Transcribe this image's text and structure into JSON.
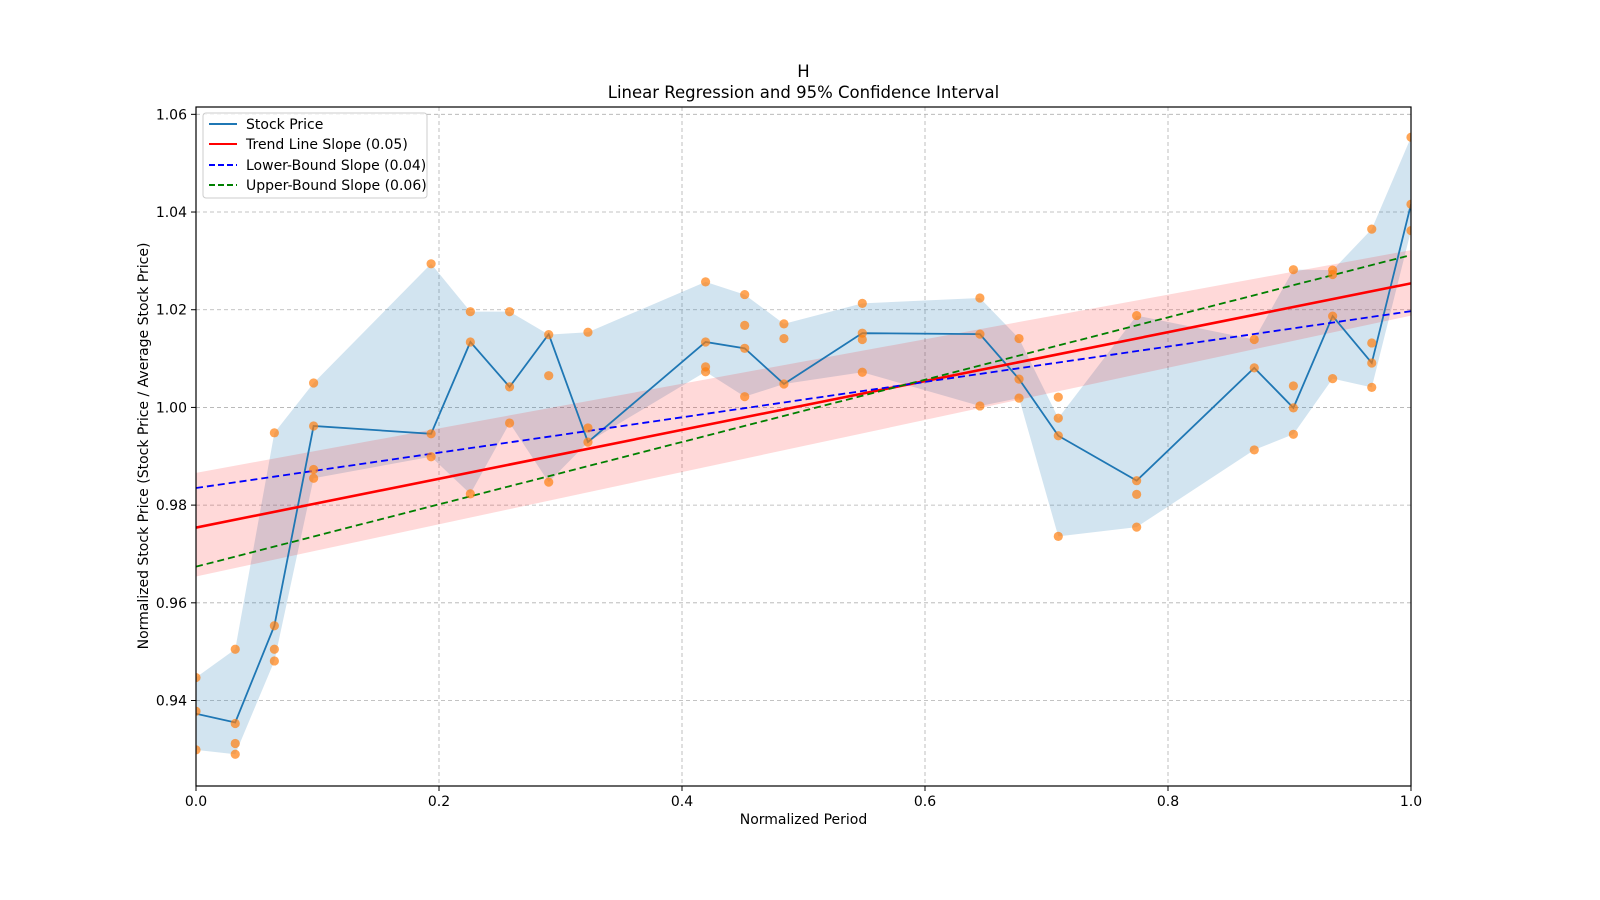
{
  "chart_data": {
    "type": "line",
    "title": "H",
    "subtitle": "Linear Regression and 95% Confidence Interval",
    "xlabel": "Normalized Period",
    "ylabel": "Normalized Stock Price (Stock Price / Average Stock Price)",
    "xlim": [
      0.0,
      1.0
    ],
    "ylim": [
      0.9225,
      1.0615
    ],
    "xticks": [
      "0.0",
      "0.2",
      "0.4",
      "0.6",
      "0.8",
      "1.0"
    ],
    "xtick_values": [
      0.0,
      0.2,
      0.4,
      0.6,
      0.8,
      1.0
    ],
    "yticks": [
      "0.94",
      "0.96",
      "0.98",
      "1.00",
      "1.02",
      "1.04",
      "1.06"
    ],
    "ytick_values": [
      0.94,
      0.96,
      0.98,
      1.0,
      1.02,
      1.04,
      1.06
    ],
    "grid": true,
    "legend_position": "top-left",
    "legend": [
      {
        "label": "Stock Price",
        "color": "#1f77b4",
        "style": "solid"
      },
      {
        "label": "Trend Line Slope (0.05)",
        "color": "#ff0000",
        "style": "solid"
      },
      {
        "label": "Lower-Bound Slope (0.04)",
        "color": "#0000ff",
        "style": "dashed"
      },
      {
        "label": "Upper-Bound Slope (0.06)",
        "color": "#008000",
        "style": "dashed"
      }
    ],
    "colors": {
      "price_line": "#1f77b4",
      "price_band": "#1f77b4",
      "scatter": "#ff7f0e",
      "trend": "#ff0000",
      "trend_band": "#ff9da6",
      "lower": "#0000ff",
      "upper": "#008000"
    },
    "x": [
      0.0,
      0.0323,
      0.0645,
      0.0968,
      0.1935,
      0.2258,
      0.2581,
      0.2903,
      0.3226,
      0.4194,
      0.4516,
      0.4839,
      0.5484,
      0.6452,
      0.6774,
      0.7097,
      0.7742,
      0.871,
      0.9032,
      0.9355,
      0.9677,
      1.0
    ],
    "series": [
      {
        "name": "Stock Price",
        "values": [
          0.9373,
          0.9355,
          0.9553,
          0.9962,
          0.9946,
          1.0134,
          1.0042,
          1.015,
          0.9929,
          1.0134,
          1.0121,
          1.0048,
          1.0152,
          1.015,
          1.0058,
          0.9942,
          0.985,
          1.0081,
          0.9999,
          1.0187,
          1.0091,
          1.0416
        ]
      }
    ],
    "band_upper": [
      0.9447,
      0.9505,
      0.9948,
      1.005,
      1.0294,
      1.0196,
      1.0196,
      1.0149,
      1.0154,
      1.0257,
      1.0231,
      1.0171,
      1.0213,
      1.0224,
      1.0141,
      0.9978,
      1.0188,
      1.0139,
      1.0282,
      1.0281,
      1.0365,
      1.0553
    ],
    "band_lower": [
      0.9299,
      0.929,
      0.9481,
      0.9855,
      0.9899,
      0.9823,
      0.9968,
      0.9847,
      0.9929,
      1.0073,
      1.0022,
      1.0048,
      1.0072,
      1.0003,
      1.0019,
      0.9736,
      0.9755,
      0.9913,
      0.9945,
      1.0059,
      1.0041,
      1.0362
    ],
    "scatter_points": [
      [
        0.0,
        0.9447
      ],
      [
        0.0,
        0.9378
      ],
      [
        0.0,
        0.9299
      ],
      [
        0.0323,
        0.9505
      ],
      [
        0.0323,
        0.9353
      ],
      [
        0.0323,
        0.9312
      ],
      [
        0.0323,
        0.929
      ],
      [
        0.0645,
        0.9948
      ],
      [
        0.0645,
        0.9553
      ],
      [
        0.0645,
        0.9505
      ],
      [
        0.0645,
        0.9481
      ],
      [
        0.0968,
        1.005
      ],
      [
        0.0968,
        0.9962
      ],
      [
        0.0968,
        0.9873
      ],
      [
        0.0968,
        0.9855
      ],
      [
        0.1935,
        1.0294
      ],
      [
        0.1935,
        0.9946
      ],
      [
        0.1935,
        0.9899
      ],
      [
        0.2258,
        1.0196
      ],
      [
        0.2258,
        1.0134
      ],
      [
        0.2258,
        0.9823
      ],
      [
        0.2581,
        1.0196
      ],
      [
        0.2581,
        1.0042
      ],
      [
        0.2581,
        0.9968
      ],
      [
        0.2903,
        1.0149
      ],
      [
        0.2903,
        1.0065
      ],
      [
        0.2903,
        0.9847
      ],
      [
        0.3226,
        1.0154
      ],
      [
        0.3226,
        0.9958
      ],
      [
        0.3226,
        0.9929
      ],
      [
        0.4194,
        1.0257
      ],
      [
        0.4194,
        1.0134
      ],
      [
        0.4194,
        1.0083
      ],
      [
        0.4194,
        1.0073
      ],
      [
        0.4516,
        1.0231
      ],
      [
        0.4516,
        1.0168
      ],
      [
        0.4516,
        1.0121
      ],
      [
        0.4516,
        1.0022
      ],
      [
        0.4839,
        1.0171
      ],
      [
        0.4839,
        1.0141
      ],
      [
        0.4839,
        1.0048
      ],
      [
        0.5484,
        1.0213
      ],
      [
        0.5484,
        1.0152
      ],
      [
        0.5484,
        1.0139
      ],
      [
        0.5484,
        1.0072
      ],
      [
        0.6452,
        1.0224
      ],
      [
        0.6452,
        1.015
      ],
      [
        0.6452,
        1.0003
      ],
      [
        0.6774,
        1.0141
      ],
      [
        0.6774,
        1.0058
      ],
      [
        0.6774,
        1.0019
      ],
      [
        0.7097,
        1.0021
      ],
      [
        0.7097,
        0.9978
      ],
      [
        0.7097,
        0.9942
      ],
      [
        0.7097,
        0.9736
      ],
      [
        0.7742,
        1.0188
      ],
      [
        0.7742,
        0.985
      ],
      [
        0.7742,
        0.9822
      ],
      [
        0.7742,
        0.9755
      ],
      [
        0.871,
        1.0139
      ],
      [
        0.871,
        1.0081
      ],
      [
        0.871,
        0.9913
      ],
      [
        0.9032,
        1.0282
      ],
      [
        0.9032,
        1.0044
      ],
      [
        0.9032,
        0.9999
      ],
      [
        0.9032,
        0.9945
      ],
      [
        0.9355,
        1.0281
      ],
      [
        0.9355,
        1.0272
      ],
      [
        0.9355,
        1.0187
      ],
      [
        0.9355,
        1.0059
      ],
      [
        0.9677,
        1.0365
      ],
      [
        0.9677,
        1.0132
      ],
      [
        0.9677,
        1.0091
      ],
      [
        0.9677,
        1.0041
      ],
      [
        1.0,
        1.0553
      ],
      [
        1.0,
        1.0416
      ],
      [
        1.0,
        1.0362
      ]
    ],
    "trend_line": {
      "intercept": 0.9754,
      "slope": 0.05,
      "ci_lower_start": 0.9654,
      "ci_upper_start": 0.9866,
      "ci_lower_end": 1.0188,
      "ci_upper_end": 1.0322
    },
    "lower_bound_line": {
      "intercept": 0.9835,
      "slope": 0.0362
    },
    "upper_bound_line": {
      "intercept": 0.9674,
      "slope": 0.0638
    }
  }
}
